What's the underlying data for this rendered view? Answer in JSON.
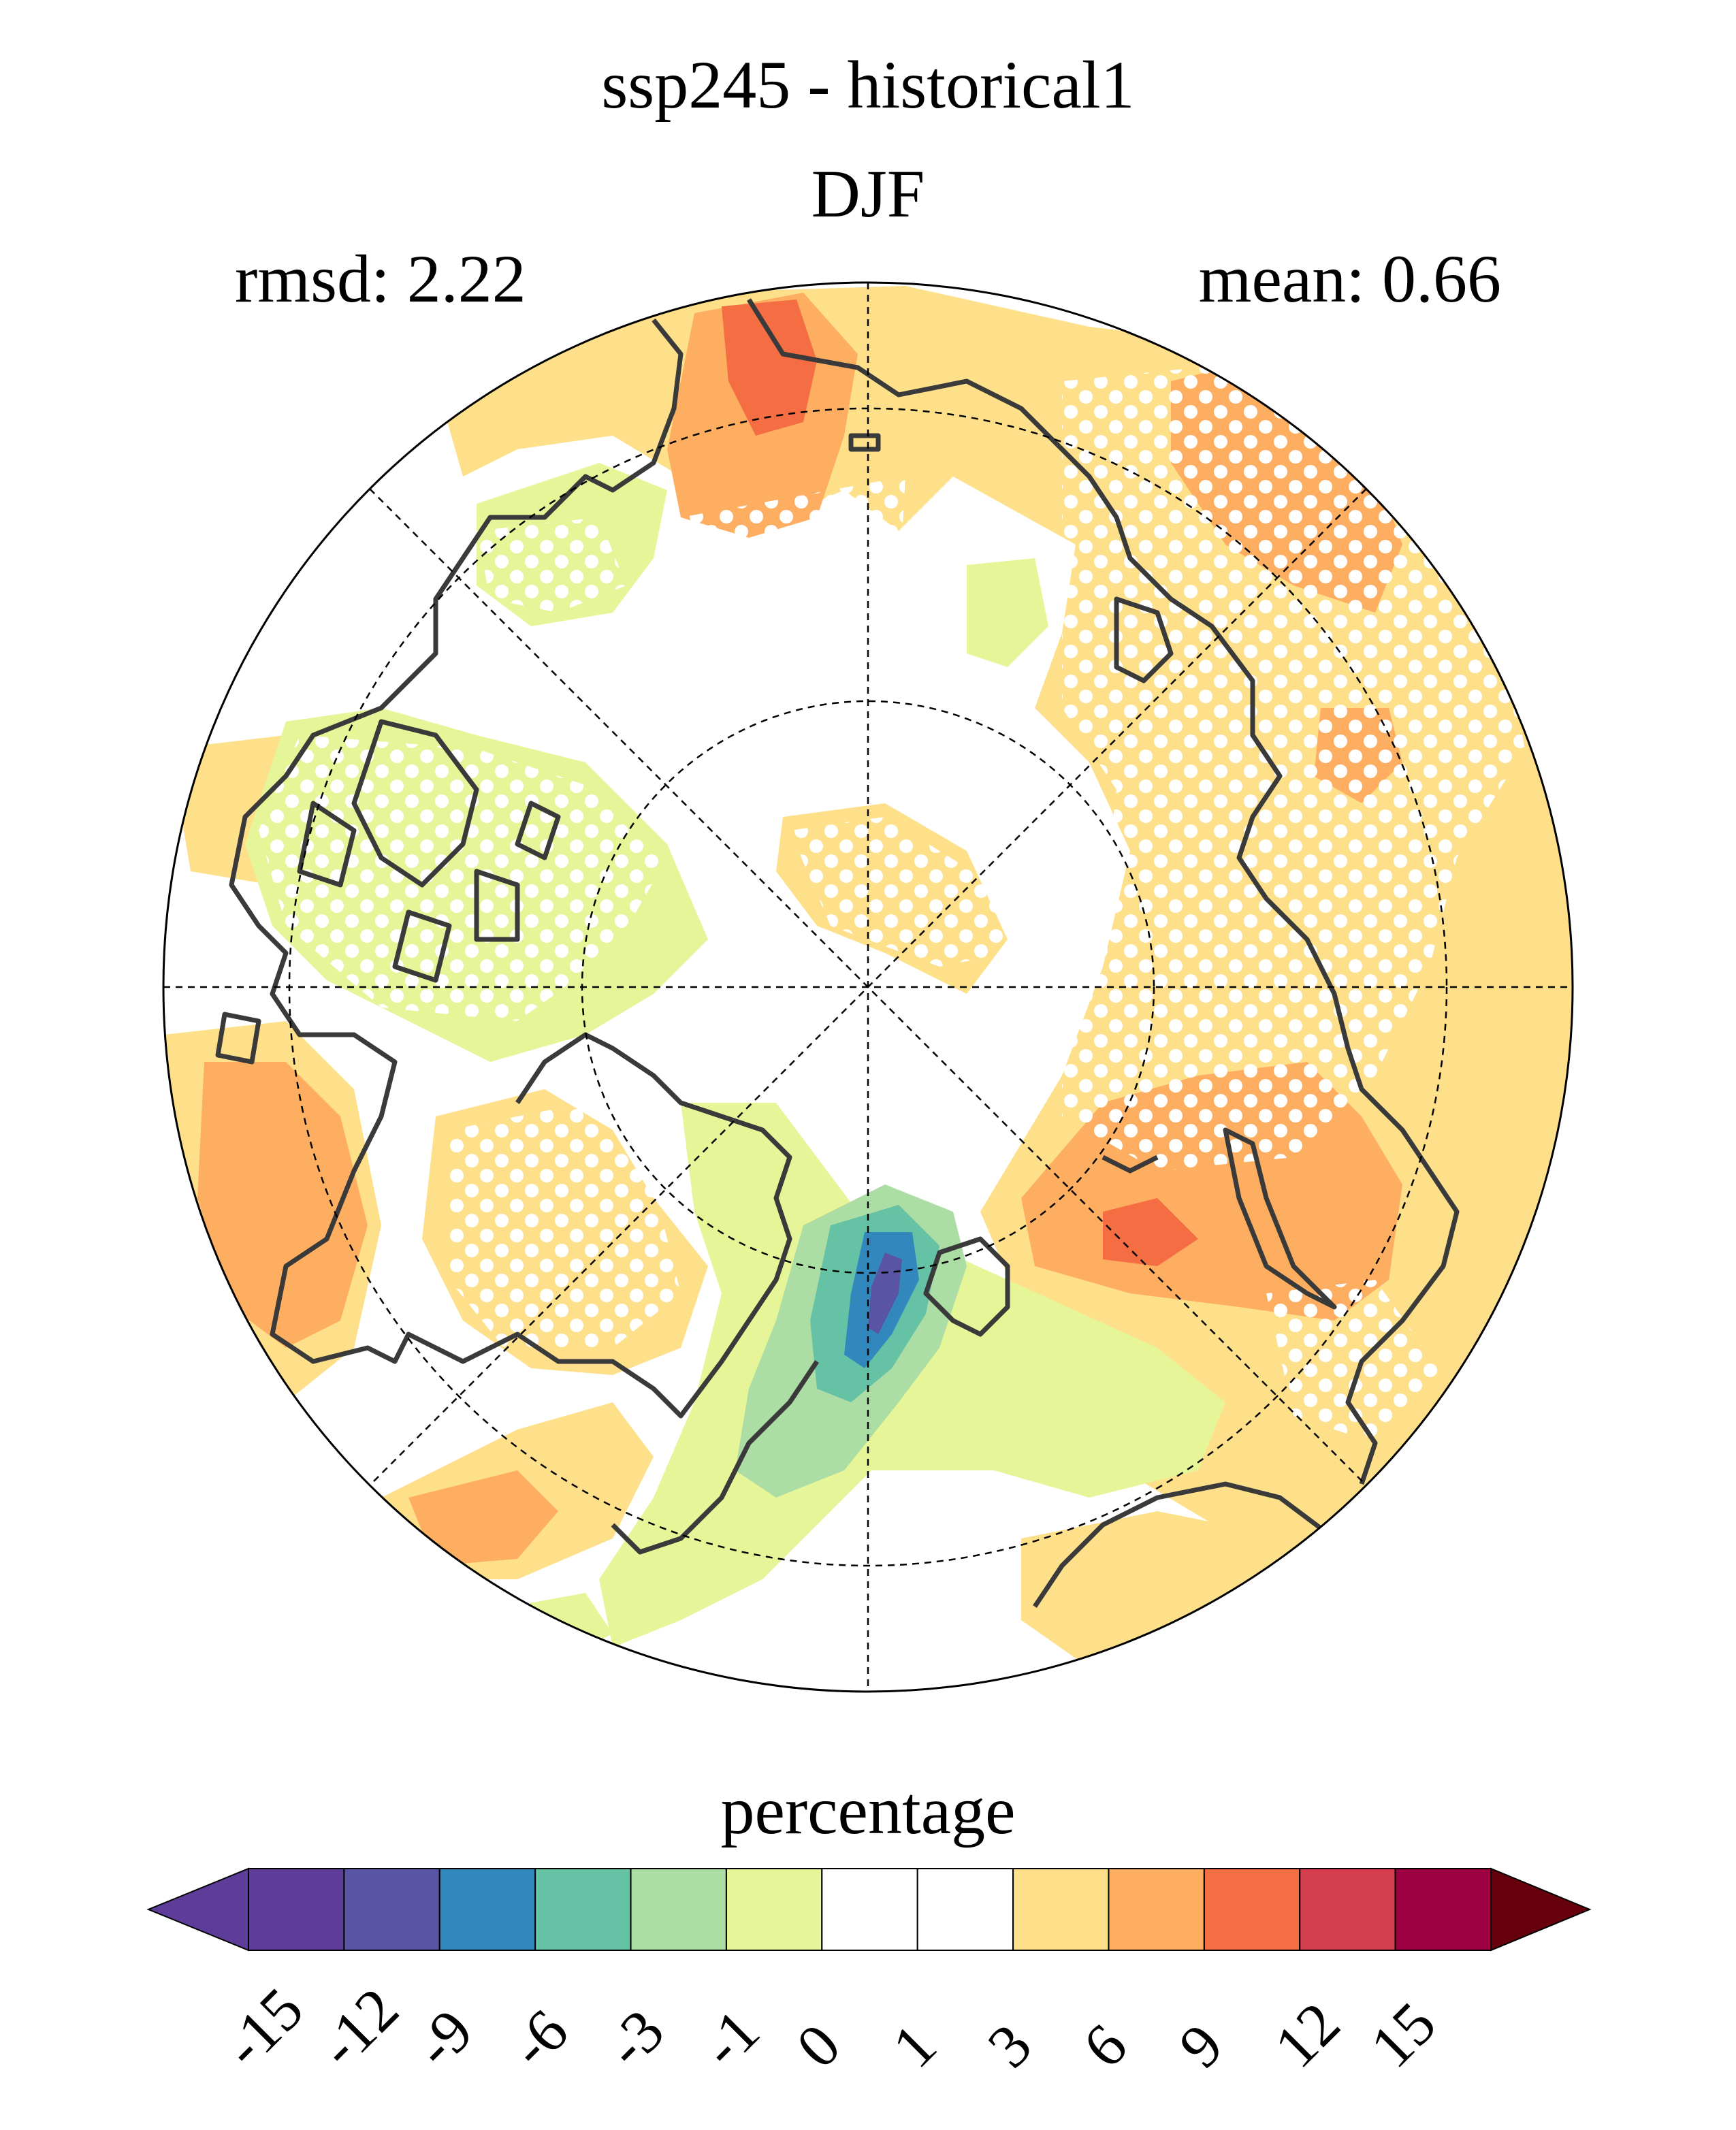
{
  "title": "ssp245 - historical1",
  "subtitle": "DJF",
  "stats": {
    "rmsd": "rmsd: 2.22",
    "mean": "mean: 0.66"
  },
  "map": {
    "projection": "north-polar-stereographic",
    "graticule": "dashed",
    "stippling": "white dots mark significant regions",
    "coastline_color": "#3a3a3a"
  },
  "colorbar": {
    "title": "percentage",
    "ticks": [
      "-15",
      "-12",
      "-9",
      "-6",
      "-3",
      "-1",
      "0",
      "1",
      "3",
      "6",
      "9",
      "12",
      "15"
    ],
    "colors": [
      "#5e3c99",
      "#5954a4",
      "#3288bd",
      "#66c2a5",
      "#abdda4",
      "#e6f598",
      "#ffffff",
      "#ffffff",
      "#fee08b",
      "#fdae61",
      "#f46d43",
      "#d53e4f",
      "#9e0142"
    ],
    "under_color": "#5e3c99",
    "over_color": "#67000d"
  }
}
